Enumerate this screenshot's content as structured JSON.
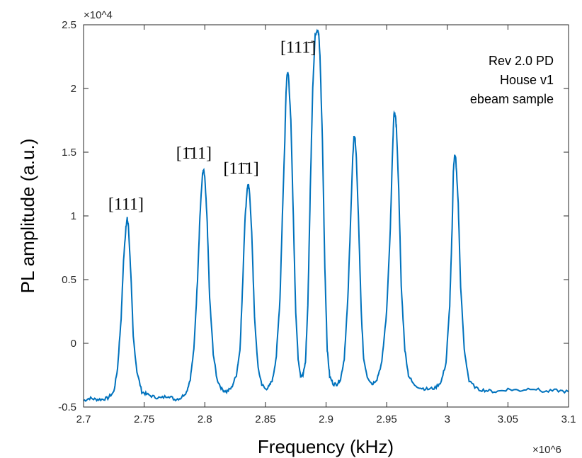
{
  "chart_data": {
    "type": "line",
    "xlabel": "Frequency (kHz)",
    "ylabel": "PL amplitude (a.u.)",
    "x_multiplier": "×10^6",
    "y_multiplier": "×10^4",
    "xlim": [
      2.7,
      3.1
    ],
    "ylim": [
      -0.5,
      2.5
    ],
    "x_ticks": [
      2.7,
      2.75,
      2.8,
      2.85,
      2.9,
      2.95,
      3.0,
      3.05,
      3.1
    ],
    "x_tick_labels": [
      "2.7",
      "2.75",
      "2.8",
      "2.85",
      "2.9",
      "2.95",
      "3",
      "3.05",
      "3.1"
    ],
    "y_ticks": [
      -0.5,
      0,
      0.5,
      1,
      1.5,
      2,
      2.5
    ],
    "y_tick_labels": [
      "-0.5",
      "0",
      "0.5",
      "1",
      "1.5",
      "2",
      "2.5"
    ],
    "grid": false,
    "line_color": "#0072BD",
    "annotation_lines": [
      "Rev 2.0 PD",
      "House v1",
      "ebeam sample"
    ],
    "series": [
      {
        "x": [
          2.7,
          2.705,
          2.71,
          2.715,
          2.72,
          2.725,
          2.728,
          2.731,
          2.733,
          2.735,
          2.736,
          2.737,
          2.739,
          2.741,
          2.744,
          2.748,
          2.752,
          2.758,
          2.764,
          2.77,
          2.775,
          2.78,
          2.785,
          2.788,
          2.791,
          2.794,
          2.796,
          2.798,
          2.799,
          2.8,
          2.802,
          2.804,
          2.807,
          2.81,
          2.814,
          2.818,
          2.822,
          2.826,
          2.829,
          2.831,
          2.833,
          2.835,
          2.836,
          2.837,
          2.839,
          2.841,
          2.844,
          2.847,
          2.85,
          2.853,
          2.856,
          2.859,
          2.862,
          2.864,
          2.866,
          2.867,
          2.868,
          2.869,
          2.871,
          2.873,
          2.875,
          2.877,
          2.879,
          2.881,
          2.883,
          2.885,
          2.887,
          2.889,
          2.891,
          2.893,
          2.894,
          2.895,
          2.897,
          2.899,
          2.901,
          2.903,
          2.906,
          2.909,
          2.912,
          2.915,
          2.918,
          2.92,
          2.922,
          2.923,
          2.924,
          2.925,
          2.927,
          2.929,
          2.931,
          2.934,
          2.938,
          2.942,
          2.946,
          2.95,
          2.953,
          2.955,
          2.956,
          2.957,
          2.958,
          2.96,
          2.962,
          2.965,
          2.968,
          2.972,
          2.978,
          2.984,
          2.99,
          2.995,
          2.999,
          3.002,
          3.004,
          3.005,
          3.006,
          3.007,
          3.009,
          3.011,
          3.014,
          3.018,
          3.025,
          3.032,
          3.04,
          3.05,
          3.06,
          3.07,
          3.08,
          3.09,
          3.1
        ],
        "y": [
          -0.45,
          -0.43,
          -0.44,
          -0.44,
          -0.43,
          -0.38,
          -0.2,
          0.2,
          0.65,
          0.92,
          0.98,
          0.92,
          0.55,
          0.05,
          -0.22,
          -0.38,
          -0.4,
          -0.42,
          -0.43,
          -0.41,
          -0.44,
          -0.43,
          -0.38,
          -0.28,
          -0.05,
          0.5,
          1.0,
          1.32,
          1.36,
          1.3,
          0.95,
          0.35,
          -0.08,
          -0.28,
          -0.36,
          -0.38,
          -0.35,
          -0.25,
          -0.05,
          0.4,
          0.95,
          1.22,
          1.24,
          1.18,
          0.8,
          0.2,
          -0.2,
          -0.32,
          -0.36,
          -0.34,
          -0.28,
          -0.1,
          0.35,
          1.0,
          1.6,
          1.98,
          2.12,
          2.1,
          1.75,
          1.0,
          0.25,
          -0.12,
          -0.25,
          -0.25,
          -0.15,
          0.3,
          1.2,
          2.0,
          2.42,
          2.46,
          2.42,
          2.25,
          1.6,
          0.6,
          -0.05,
          -0.26,
          -0.32,
          -0.32,
          -0.28,
          -0.12,
          0.35,
          0.9,
          1.45,
          1.62,
          1.6,
          1.45,
          0.9,
          0.25,
          -0.12,
          -0.26,
          -0.32,
          -0.28,
          -0.15,
          0.25,
          0.9,
          1.55,
          1.8,
          1.8,
          1.7,
          1.2,
          0.45,
          -0.05,
          -0.25,
          -0.32,
          -0.35,
          -0.36,
          -0.35,
          -0.3,
          -0.15,
          0.3,
          0.9,
          1.35,
          1.48,
          1.45,
          1.1,
          0.45,
          -0.05,
          -0.3,
          -0.36,
          -0.37,
          -0.38,
          -0.36,
          -0.37,
          -0.35,
          -0.38,
          -0.37,
          -0.38
        ]
      }
    ],
    "peak_labels": [
      {
        "text": "[111]",
        "x": 2.735,
        "y": 1.05
      },
      {
        "text": "[1̄11]",
        "x": 2.791,
        "y": 1.45
      },
      {
        "text": "[11̄1]",
        "x": 2.83,
        "y": 1.33
      },
      {
        "text": "[111̄]",
        "x": 2.877,
        "y": 2.28
      }
    ]
  }
}
